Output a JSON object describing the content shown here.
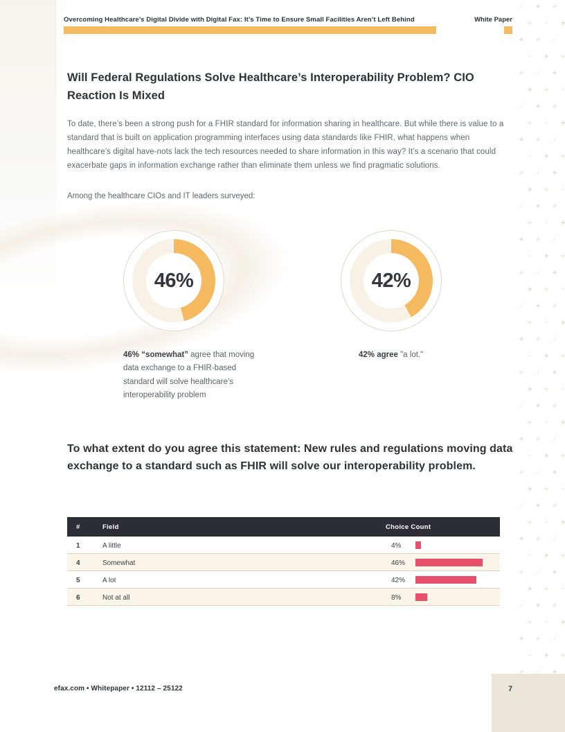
{
  "header": {
    "title": "Overcoming Healthcare’s Digital Divide with Digital Fax: It’s Time to Ensure Small Facilities Aren’t Left Behind",
    "tag": "White Paper",
    "accent_color": "#F5B95F"
  },
  "section": {
    "heading": "Will Federal Regulations Solve Healthcare’s Interoperability Problem? CIO Reaction Is Mixed",
    "body": "To date, there’s been a strong push for a FHIR standard for information sharing in healthcare. But while there is value to a standard that is built on application programming interfaces using data standards like FHIR, what happens when healthcare’s digital have-nots lack the tech resources needed to share information in this way? It’s a scenario that could exacerbate gaps in information exchange rather than eliminate them unless we find pragmatic solutions.",
    "lead_in": "Among the healthcare CIOs and IT leaders surveyed:"
  },
  "question": "To what extent do you agree this statement: New rules and regulations moving data exchange to a standard such as FHIR will solve our interoperability problem.",
  "footer": {
    "text": "efax.com • Whitepaper • 12112 – 25122",
    "page_number": "7"
  },
  "chart_data": [
    {
      "type": "pie",
      "subtype": "donut",
      "label": "46%",
      "value": 46,
      "remainder": 54,
      "arc_color": "#F5B95F",
      "track_color": "#F7F1E6",
      "caption_bold": "46% “somewhat”",
      "caption_rest": " agree that moving data exchange to a FHIR-based standard will solve healthcare’s interoperability problem"
    },
    {
      "type": "pie",
      "subtype": "donut",
      "label": "42%",
      "value": 42,
      "remainder": 58,
      "arc_color": "#F5B95F",
      "track_color": "#F7F1E6",
      "caption_bold": "42% agree",
      "caption_rest": " \"a lot.\""
    },
    {
      "type": "bar",
      "orientation": "horizontal",
      "title": "To what extent do you agree this statement: New rules and regulations moving data exchange to a standard such as FHIR will solve our interoperability problem.",
      "columns": {
        "num": "#",
        "field": "Field",
        "count": "Choice Count"
      },
      "bar_color": "#E5516A",
      "xlim": [
        0,
        50
      ],
      "rows": [
        {
          "num": "1",
          "field": "A little",
          "pct": "4%",
          "value": 4
        },
        {
          "num": "4",
          "field": "Somewhat",
          "pct": "46%",
          "value": 46
        },
        {
          "num": "5",
          "field": "A lot",
          "pct": "42%",
          "value": 42
        },
        {
          "num": "6",
          "field": "Not at all",
          "pct": "8%",
          "value": 8
        }
      ]
    }
  ]
}
